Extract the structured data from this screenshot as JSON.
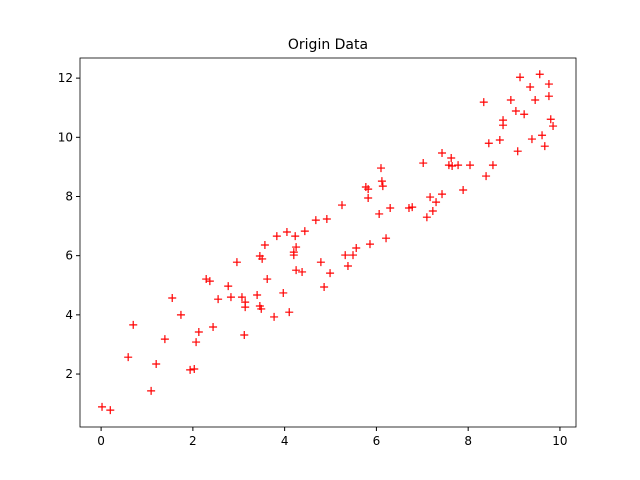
{
  "chart_data": {
    "type": "scatter",
    "title": "Origin Data",
    "color": "#ff0000",
    "marker": "+",
    "x": [
      0.02,
      0.2,
      0.59,
      0.7,
      1.09,
      1.2,
      1.39,
      1.55,
      1.74,
      1.94,
      2.03,
      2.07,
      2.13,
      2.29,
      2.37,
      2.44,
      2.55,
      2.77,
      2.83,
      2.96,
      3.07,
      3.14,
      3.14,
      3.12,
      3.4,
      3.46,
      3.49,
      3.46,
      3.51,
      3.57,
      3.62,
      3.77,
      3.83,
      3.97,
      4.05,
      4.1,
      4.23,
      4.2,
      4.2,
      4.25,
      4.25,
      4.38,
      4.44,
      4.68,
      4.79,
      4.86,
      4.92,
      4.99,
      5.25,
      5.32,
      5.38,
      5.49,
      5.56,
      5.77,
      5.82,
      5.82,
      5.86,
      6.06,
      6.1,
      6.12,
      6.14,
      6.21,
      6.3,
      6.71,
      6.78,
      7.02,
      7.1,
      7.17,
      7.23,
      7.3,
      7.43,
      7.43,
      7.58,
      7.63,
      7.65,
      7.78,
      7.89,
      8.04,
      8.34,
      8.39,
      8.45,
      8.54,
      8.69,
      8.76,
      8.76,
      8.93,
      9.04,
      9.08,
      9.13,
      9.22,
      9.35,
      9.39,
      9.46,
      9.56,
      9.61,
      9.67,
      9.76,
      9.76,
      9.8,
      9.85
    ],
    "values": [
      0.89,
      0.78,
      2.57,
      3.66,
      1.43,
      2.34,
      3.18,
      4.57,
      4.0,
      2.14,
      2.17,
      3.08,
      3.42,
      5.21,
      5.14,
      3.59,
      4.53,
      4.97,
      4.6,
      5.78,
      4.6,
      4.43,
      4.26,
      3.32,
      4.67,
      4.3,
      4.2,
      5.99,
      5.89,
      6.36,
      5.21,
      3.93,
      6.66,
      4.74,
      6.8,
      4.09,
      6.66,
      6.02,
      6.12,
      6.29,
      5.51,
      5.45,
      6.83,
      7.2,
      5.78,
      4.94,
      7.24,
      5.41,
      7.71,
      6.02,
      5.65,
      6.02,
      6.26,
      8.32,
      8.25,
      7.95,
      6.39,
      7.41,
      8.96,
      8.52,
      8.35,
      6.59,
      7.61,
      7.61,
      7.64,
      9.13,
      7.3,
      7.98,
      7.51,
      7.81,
      8.08,
      9.47,
      9.06,
      9.3,
      9.03,
      9.06,
      8.22,
      9.06,
      11.19,
      8.69,
      9.8,
      9.06,
      9.91,
      10.58,
      10.41,
      11.26,
      10.89,
      9.53,
      12.03,
      10.78,
      11.7,
      9.94,
      11.26,
      12.13,
      10.07,
      9.7,
      11.8,
      11.39,
      10.61,
      10.38
    ],
    "xlim": [
      -0.46,
      10.35
    ],
    "ylim": [
      0.21,
      12.68
    ],
    "xticks": [
      0,
      2,
      4,
      6,
      8,
      10
    ],
    "yticks": [
      2,
      4,
      6,
      8,
      10,
      12
    ],
    "grid": false
  }
}
